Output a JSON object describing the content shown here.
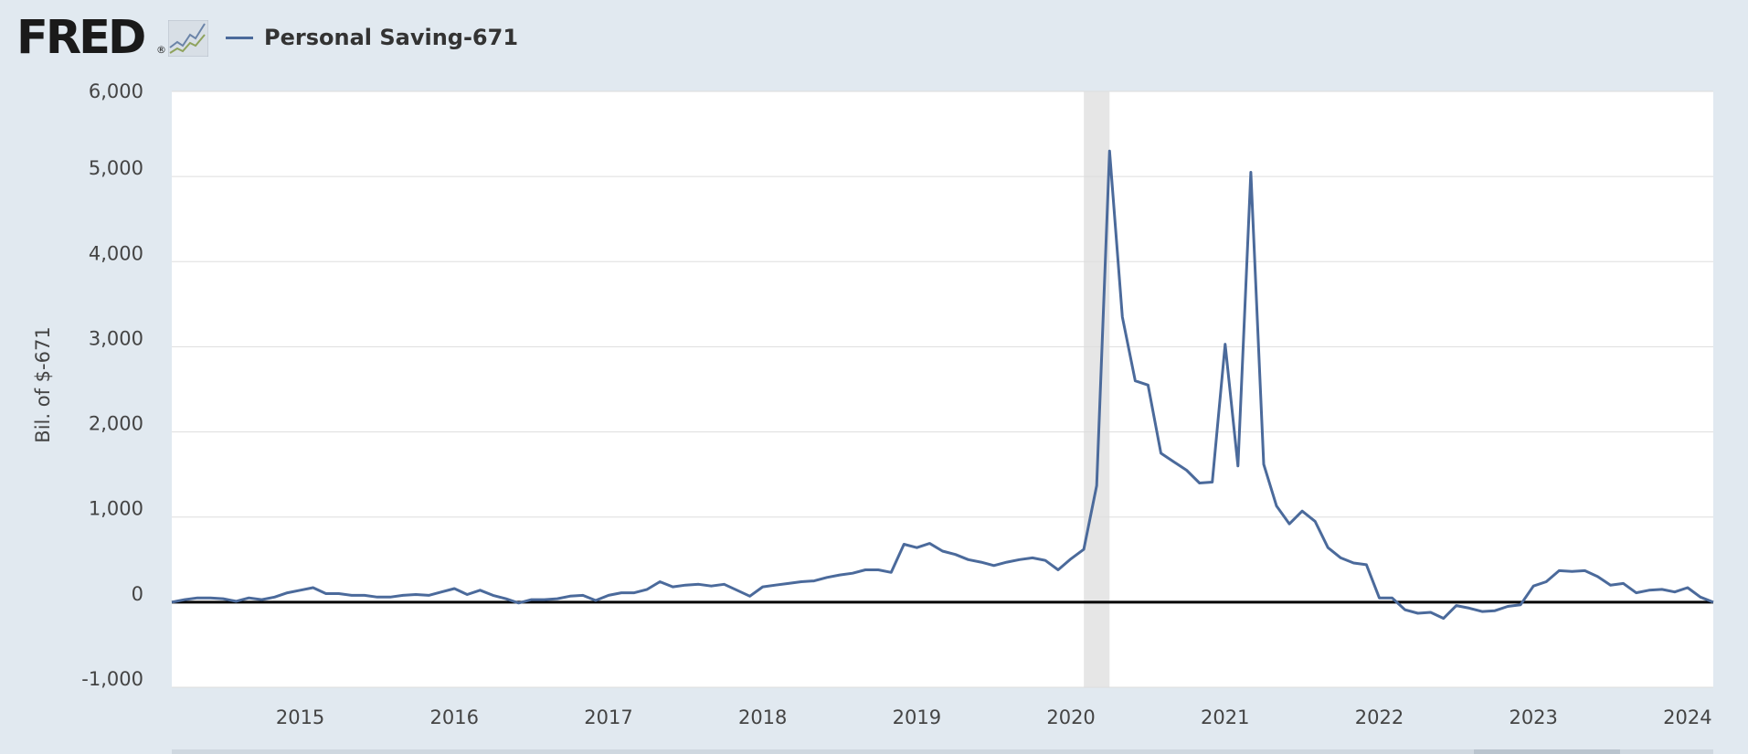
{
  "header": {
    "logo_text": "FRED",
    "logo_mark": "®",
    "logo_icon": "fred-line-chart-icon"
  },
  "legend": {
    "label": "Personal Saving-671",
    "color": "#4b6a9b"
  },
  "colors": {
    "background": "#e1e9f0",
    "plot_background": "#ffffff",
    "series": "#4b6a9b",
    "recession_band": "#e6e6e6",
    "zero_line": "#000000",
    "grid": "#dddddd"
  },
  "chart_data": {
    "type": "line",
    "title": "",
    "xlabel": "",
    "ylabel": "Bil. of $-671",
    "ylim": [
      -1000,
      6000
    ],
    "yticks": [
      -1000,
      0,
      1000,
      2000,
      3000,
      4000,
      5000,
      6000
    ],
    "ytick_labels": [
      "-1,000",
      "0",
      "1,000",
      "2,000",
      "3,000",
      "4,000",
      "5,000",
      "6,000"
    ],
    "xlim": [
      "2014-03",
      "2024-03"
    ],
    "xticks": [
      2015,
      2016,
      2017,
      2018,
      2019,
      2020,
      2021,
      2022,
      2023,
      2024
    ],
    "xtick_labels": [
      "2015",
      "2016",
      "2017",
      "2018",
      "2019",
      "2020",
      "2021",
      "2022",
      "2023",
      "2024"
    ],
    "grid": true,
    "legend_position": "top-left",
    "recession": {
      "start": "2020-02",
      "end": "2020-04"
    },
    "series": [
      {
        "name": "Personal Saving-671",
        "x": [
          "2014-03",
          "2014-04",
          "2014-05",
          "2014-06",
          "2014-07",
          "2014-08",
          "2014-09",
          "2014-10",
          "2014-11",
          "2014-12",
          "2015-01",
          "2015-02",
          "2015-03",
          "2015-04",
          "2015-05",
          "2015-06",
          "2015-07",
          "2015-08",
          "2015-09",
          "2015-10",
          "2015-11",
          "2015-12",
          "2016-01",
          "2016-02",
          "2016-03",
          "2016-04",
          "2016-05",
          "2016-06",
          "2016-07",
          "2016-08",
          "2016-09",
          "2016-10",
          "2016-11",
          "2016-12",
          "2017-01",
          "2017-02",
          "2017-03",
          "2017-04",
          "2017-05",
          "2017-06",
          "2017-07",
          "2017-08",
          "2017-09",
          "2017-10",
          "2017-11",
          "2017-12",
          "2018-01",
          "2018-02",
          "2018-03",
          "2018-04",
          "2018-05",
          "2018-06",
          "2018-07",
          "2018-08",
          "2018-09",
          "2018-10",
          "2018-11",
          "2018-12",
          "2019-01",
          "2019-02",
          "2019-03",
          "2019-04",
          "2019-05",
          "2019-06",
          "2019-07",
          "2019-08",
          "2019-09",
          "2019-10",
          "2019-11",
          "2019-12",
          "2020-01",
          "2020-02",
          "2020-03",
          "2020-04",
          "2020-05",
          "2020-06",
          "2020-07",
          "2020-08",
          "2020-09",
          "2020-10",
          "2020-11",
          "2020-12",
          "2021-01",
          "2021-02",
          "2021-03",
          "2021-04",
          "2021-05",
          "2021-06",
          "2021-07",
          "2021-08",
          "2021-09",
          "2021-10",
          "2021-11",
          "2021-12",
          "2022-01",
          "2022-02",
          "2022-03",
          "2022-04",
          "2022-05",
          "2022-06",
          "2022-07",
          "2022-08",
          "2022-09",
          "2022-10",
          "2022-11",
          "2022-12",
          "2023-01",
          "2023-02",
          "2023-03",
          "2023-04",
          "2023-05",
          "2023-06",
          "2023-07",
          "2023-08",
          "2023-09",
          "2023-10",
          "2023-11",
          "2023-12",
          "2024-01",
          "2024-02",
          "2024-03"
        ],
        "values": [
          0,
          30,
          50,
          50,
          40,
          10,
          50,
          30,
          60,
          110,
          140,
          170,
          100,
          100,
          80,
          80,
          60,
          60,
          80,
          90,
          80,
          120,
          160,
          90,
          140,
          80,
          40,
          -10,
          30,
          30,
          40,
          70,
          80,
          20,
          80,
          110,
          110,
          150,
          240,
          180,
          200,
          210,
          190,
          210,
          140,
          70,
          180,
          200,
          220,
          240,
          250,
          290,
          320,
          340,
          380,
          380,
          350,
          680,
          640,
          690,
          600,
          560,
          500,
          470,
          430,
          470,
          500,
          520,
          490,
          380,
          510,
          620,
          1370,
          5300,
          3350,
          2600,
          2550,
          1750,
          1650,
          1550,
          1400,
          1410,
          3030,
          1600,
          5050,
          1620,
          1130,
          920,
          1070,
          950,
          640,
          520,
          460,
          440,
          50,
          50,
          -90,
          -130,
          -120,
          -190,
          -40,
          -70,
          -110,
          -100,
          -50,
          -30,
          190,
          240,
          370,
          360,
          370,
          300,
          200,
          220,
          110,
          140,
          150,
          120,
          170,
          60,
          0
        ]
      }
    ]
  }
}
